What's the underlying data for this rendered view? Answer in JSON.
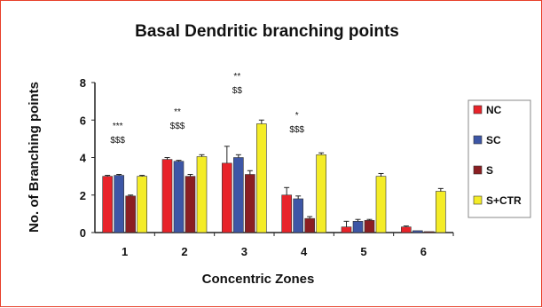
{
  "chart_data": {
    "type": "bar",
    "title": "Basal Dendritic branching points",
    "xlabel": "Concentric Zones",
    "ylabel": "No. of Branching points",
    "categories": [
      "1",
      "2",
      "3",
      "4",
      "5",
      "6"
    ],
    "yticks": [
      "0",
      "2",
      "4",
      "6",
      "8"
    ],
    "ylim": [
      0,
      8
    ],
    "grid": false,
    "legend_position": "right",
    "series": [
      {
        "name": "NC",
        "color": "#e8232a",
        "values": [
          3.0,
          3.9,
          3.7,
          2.0,
          0.3,
          0.3
        ],
        "errors": [
          0.05,
          0.1,
          0.9,
          0.4,
          0.3,
          0.05
        ]
      },
      {
        "name": "SC",
        "color": "#3d56a6",
        "values": [
          3.05,
          3.8,
          4.0,
          1.8,
          0.6,
          0.1
        ],
        "errors": [
          0.05,
          0.05,
          0.15,
          0.15,
          0.1,
          0.0
        ]
      },
      {
        "name": "S",
        "color": "#8b1e22",
        "values": [
          1.95,
          3.0,
          3.1,
          0.75,
          0.65,
          0.05
        ],
        "errors": [
          0.05,
          0.1,
          0.2,
          0.1,
          0.05,
          0.0
        ]
      },
      {
        "name": "S+CTR",
        "color": "#f4ec27",
        "values": [
          3.0,
          4.05,
          5.8,
          4.15,
          3.0,
          2.2
        ],
        "errors": [
          0.05,
          0.1,
          0.2,
          0.1,
          0.15,
          0.15
        ]
      }
    ],
    "annotations": [
      {
        "category": "1",
        "lines": [
          "***",
          "$$$"
        ]
      },
      {
        "category": "2",
        "lines": [
          "**",
          "$$$"
        ]
      },
      {
        "category": "3",
        "lines": [
          "**",
          "$$"
        ]
      },
      {
        "category": "4",
        "lines": [
          "*",
          "$$$"
        ]
      }
    ]
  }
}
